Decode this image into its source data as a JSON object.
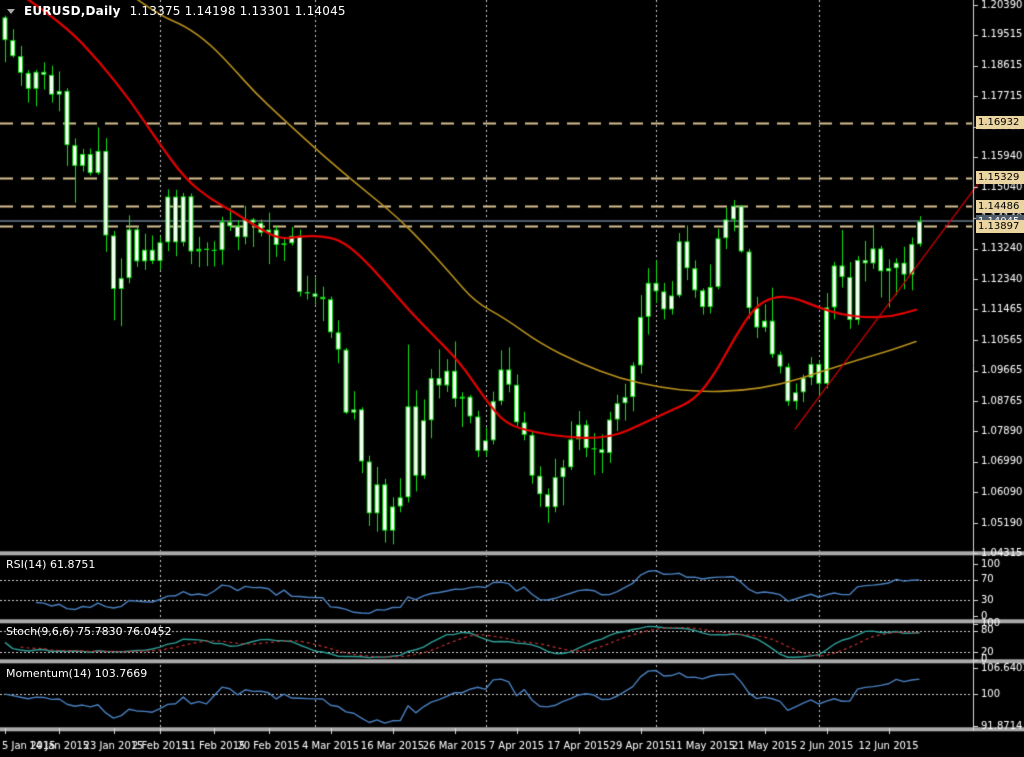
{
  "header": {
    "symbol_period": "EURUSD,Daily",
    "ohlc": "1.13375 1.14198 1.13301 1.14045"
  },
  "chart_data": {
    "type": "candlestick",
    "symbol": "EURUSD",
    "timeframe": "Daily",
    "current_bar": {
      "open": 1.13375,
      "high": 1.14198,
      "low": 1.13301,
      "close": 1.14045
    },
    "price_axis": {
      "ylim": [
        1.04315,
        1.2039
      ],
      "tick_labels": [
        "1.20390",
        "1.19515",
        "1.18615",
        "1.17715",
        "1.16815",
        "1.15940",
        "1.15040",
        "1.14140",
        "1.13240",
        "1.12340",
        "1.11465",
        "1.10565",
        "1.09665",
        "1.08765",
        "1.07890",
        "1.06990",
        "1.06090",
        "1.05190",
        "1.04315"
      ],
      "tick_values": [
        1.2039,
        1.19515,
        1.18615,
        1.17715,
        1.16815,
        1.1594,
        1.1504,
        1.1414,
        1.1324,
        1.1234,
        1.11465,
        1.10565,
        1.09665,
        1.08765,
        1.0789,
        1.0699,
        1.0609,
        1.0519,
        1.04315
      ]
    },
    "levels": [
      {
        "value": 1.16932,
        "label": "1.16932"
      },
      {
        "value": 1.15329,
        "label": "1.15329"
      },
      {
        "value": 1.14486,
        "label": "1.14486"
      },
      {
        "value": 1.13897,
        "label": "1.13897"
      }
    ],
    "current_price": {
      "value": 1.14045,
      "label": "1.14045"
    },
    "x_axis": {
      "labels": [
        "5 Jan 2015",
        "14 Jan 2015",
        "23 Jan 2015",
        "2 Feb 2015",
        "11 Feb 2015",
        "20 Feb 2015",
        "4 Mar 2015",
        "16 Mar 2015",
        "26 Mar 2015",
        "7 Apr 2015",
        "17 Apr 2015",
        "29 Apr 2015",
        "11 May 2015",
        "21 May 2015",
        "2 Jun 2015",
        "12 Jun 2015"
      ],
      "indices": [
        0,
        7,
        14,
        20,
        27,
        34,
        42,
        50,
        58,
        66,
        74,
        82,
        90,
        98,
        106,
        114
      ]
    },
    "month_separator_indices": [
      20,
      40,
      62,
      84,
      105
    ],
    "candles": [
      [
        1.2003,
        1.2008,
        1.1871,
        1.1936
      ],
      [
        1.1936,
        1.1968,
        1.1885,
        1.1889
      ],
      [
        1.1889,
        1.1919,
        1.1802,
        1.184
      ],
      [
        1.184,
        1.1848,
        1.1753,
        1.1793
      ],
      [
        1.1793,
        1.1849,
        1.1742,
        1.1843
      ],
      [
        1.1843,
        1.1871,
        1.1791,
        1.1834
      ],
      [
        1.1834,
        1.1861,
        1.1753,
        1.1776
      ],
      [
        1.1776,
        1.1844,
        1.1727,
        1.1787
      ],
      [
        1.1787,
        1.1795,
        1.1567,
        1.1628
      ],
      [
        1.1628,
        1.1648,
        1.1459,
        1.1567
      ],
      [
        1.1567,
        1.1617,
        1.155,
        1.1602
      ],
      [
        1.1602,
        1.1618,
        1.1539,
        1.1546
      ],
      [
        1.1546,
        1.168,
        1.1541,
        1.1611
      ],
      [
        1.1611,
        1.1649,
        1.1315,
        1.1363
      ],
      [
        1.1363,
        1.1376,
        1.1114,
        1.1206
      ],
      [
        1.1206,
        1.1296,
        1.1097,
        1.1238
      ],
      [
        1.1238,
        1.1422,
        1.1223,
        1.1381
      ],
      [
        1.1381,
        1.139,
        1.1271,
        1.1287
      ],
      [
        1.1287,
        1.1368,
        1.1262,
        1.1321
      ],
      [
        1.1321,
        1.1363,
        1.1279,
        1.1288
      ],
      [
        1.1288,
        1.136,
        1.1262,
        1.1343
      ],
      [
        1.1343,
        1.1498,
        1.1317,
        1.1477
      ],
      [
        1.1477,
        1.1497,
        1.1302,
        1.1343
      ],
      [
        1.1343,
        1.1488,
        1.1331,
        1.1478
      ],
      [
        1.1478,
        1.1486,
        1.1279,
        1.1316
      ],
      [
        1.1316,
        1.1359,
        1.127,
        1.1324
      ],
      [
        1.1324,
        1.1343,
        1.1273,
        1.1321
      ],
      [
        1.1321,
        1.1346,
        1.1272,
        1.132
      ],
      [
        1.132,
        1.1418,
        1.1277,
        1.1403
      ],
      [
        1.1403,
        1.1443,
        1.1376,
        1.139
      ],
      [
        1.139,
        1.1407,
        1.132,
        1.1358
      ],
      [
        1.1358,
        1.145,
        1.1337,
        1.141
      ],
      [
        1.141,
        1.1414,
        1.1329,
        1.14
      ],
      [
        1.14,
        1.141,
        1.136,
        1.1371
      ],
      [
        1.1371,
        1.143,
        1.1279,
        1.138
      ],
      [
        1.138,
        1.1392,
        1.13,
        1.1335
      ],
      [
        1.1335,
        1.1358,
        1.1288,
        1.134
      ],
      [
        1.134,
        1.1388,
        1.1333,
        1.1362
      ],
      [
        1.1362,
        1.138,
        1.1184,
        1.1197
      ],
      [
        1.1197,
        1.1245,
        1.1175,
        1.1193
      ],
      [
        1.1193,
        1.124,
        1.116,
        1.1183
      ],
      [
        1.1183,
        1.1213,
        1.1112,
        1.1176
      ],
      [
        1.1176,
        1.1184,
        1.1062,
        1.1079
      ],
      [
        1.1079,
        1.1114,
        1.0988,
        1.1028
      ],
      [
        1.1028,
        1.1033,
        1.0839,
        1.0843
      ],
      [
        1.0843,
        1.0906,
        1.0823,
        1.0853
      ],
      [
        1.0853,
        1.0859,
        1.0666,
        1.07
      ],
      [
        1.07,
        1.0717,
        1.0511,
        1.0548
      ],
      [
        1.0548,
        1.0684,
        1.0494,
        1.0633
      ],
      [
        1.0633,
        1.0649,
        1.0462,
        1.0497
      ],
      [
        1.0497,
        1.0595,
        1.0457,
        1.0568
      ],
      [
        1.0568,
        1.0651,
        1.0551,
        1.0595
      ],
      [
        1.0595,
        1.1043,
        1.058,
        1.0862
      ],
      [
        1.0862,
        1.0909,
        1.0612,
        1.0658
      ],
      [
        1.0658,
        1.0882,
        1.0649,
        1.0821
      ],
      [
        1.0821,
        1.0971,
        1.0768,
        1.0945
      ],
      [
        1.0945,
        1.1029,
        1.0885,
        1.0923
      ],
      [
        1.0923,
        1.1,
        1.0904,
        1.0966
      ],
      [
        1.0966,
        1.1052,
        1.086,
        1.0884
      ],
      [
        1.0884,
        1.0903,
        1.0801,
        1.089
      ],
      [
        1.089,
        1.0895,
        1.0812,
        1.0832
      ],
      [
        1.0832,
        1.0849,
        1.0713,
        1.0731
      ],
      [
        1.0731,
        1.08,
        1.0715,
        1.0762
      ],
      [
        1.0762,
        1.0905,
        1.075,
        1.0877
      ],
      [
        1.0877,
        1.1026,
        1.0865,
        1.097
      ],
      [
        1.097,
        1.1035,
        1.0903,
        1.0925
      ],
      [
        1.0925,
        1.0955,
        1.0804,
        1.0815
      ],
      [
        1.0815,
        1.0846,
        1.0762,
        1.0778
      ],
      [
        1.0778,
        1.0789,
        1.0635,
        1.0658
      ],
      [
        1.0658,
        1.0686,
        1.0567,
        1.0604
      ],
      [
        1.0604,
        1.0621,
        1.052,
        1.0566
      ],
      [
        1.0566,
        1.0708,
        1.0551,
        1.0654
      ],
      [
        1.0654,
        1.0705,
        1.0571,
        1.0683
      ],
      [
        1.0683,
        1.0818,
        1.0675,
        1.0765
      ],
      [
        1.0765,
        1.0848,
        1.0733,
        1.0808
      ],
      [
        1.0808,
        1.0821,
        1.0713,
        1.0739
      ],
      [
        1.0739,
        1.0783,
        1.066,
        1.0736
      ],
      [
        1.0736,
        1.0779,
        1.0666,
        1.0725
      ],
      [
        1.0725,
        1.0846,
        1.0696,
        1.0823
      ],
      [
        1.0823,
        1.0896,
        1.0789,
        1.0871
      ],
      [
        1.0871,
        1.0928,
        1.082,
        1.0889
      ],
      [
        1.0889,
        1.0991,
        1.0847,
        1.0982
      ],
      [
        1.0982,
        1.1188,
        1.0958,
        1.1124
      ],
      [
        1.1124,
        1.1267,
        1.1072,
        1.1224
      ],
      [
        1.1224,
        1.129,
        1.1165,
        1.1199
      ],
      [
        1.1199,
        1.1224,
        1.1117,
        1.1146
      ],
      [
        1.1146,
        1.1229,
        1.1131,
        1.1187
      ],
      [
        1.1187,
        1.137,
        1.1181,
        1.1346
      ],
      [
        1.1346,
        1.1392,
        1.1232,
        1.1267
      ],
      [
        1.1267,
        1.129,
        1.118,
        1.1202
      ],
      [
        1.1202,
        1.1208,
        1.1131,
        1.1153
      ],
      [
        1.1153,
        1.1278,
        1.1134,
        1.1212
      ],
      [
        1.1212,
        1.1383,
        1.1205,
        1.1355
      ],
      [
        1.1355,
        1.1445,
        1.1323,
        1.141
      ],
      [
        1.141,
        1.1467,
        1.1375,
        1.145
      ],
      [
        1.145,
        1.1452,
        1.1312,
        1.1316
      ],
      [
        1.1316,
        1.1324,
        1.1119,
        1.115
      ],
      [
        1.115,
        1.1183,
        1.1062,
        1.1093
      ],
      [
        1.1093,
        1.1161,
        1.108,
        1.1113
      ],
      [
        1.1113,
        1.121,
        1.1004,
        1.1014
      ],
      [
        1.1014,
        1.1023,
        1.0958,
        1.0978
      ],
      [
        1.0978,
        1.0988,
        1.0863,
        1.0876
      ],
      [
        1.0876,
        1.0929,
        1.0852,
        1.0903
      ],
      [
        1.0903,
        1.0955,
        1.0874,
        1.0946
      ],
      [
        1.0946,
        1.1006,
        1.0924,
        1.0986
      ],
      [
        1.0986,
        1.0996,
        1.0888,
        1.0928
      ],
      [
        1.0928,
        1.1194,
        1.0914,
        1.1152
      ],
      [
        1.1152,
        1.1285,
        1.1117,
        1.1275
      ],
      [
        1.1275,
        1.1379,
        1.121,
        1.1241
      ],
      [
        1.1241,
        1.1285,
        1.1089,
        1.1115
      ],
      [
        1.1115,
        1.1303,
        1.1101,
        1.1291
      ],
      [
        1.1291,
        1.1347,
        1.1228,
        1.1281
      ],
      [
        1.1281,
        1.1386,
        1.1265,
        1.1325
      ],
      [
        1.1325,
        1.1332,
        1.1181,
        1.1258
      ],
      [
        1.1258,
        1.1293,
        1.1152,
        1.1267
      ],
      [
        1.1267,
        1.1296,
        1.1188,
        1.1283
      ],
      [
        1.1283,
        1.133,
        1.1205,
        1.1248
      ],
      [
        1.1248,
        1.1357,
        1.1202,
        1.1338
      ],
      [
        1.13375,
        1.14198,
        1.13301,
        1.14045
      ]
    ],
    "overlays": {
      "ma_fast": {
        "name": "red moving average",
        "color": "#E60000",
        "points": [
          [
            28,
            1.2055
          ],
          [
            65,
            1.198
          ],
          [
            100,
            1.187
          ],
          [
            130,
            1.176
          ],
          [
            160,
            1.163
          ],
          [
            185,
            1.153
          ],
          [
            210,
            1.147
          ],
          [
            235,
            1.143
          ],
          [
            258,
            1.1385
          ],
          [
            280,
            1.1352
          ],
          [
            300,
            1.136
          ],
          [
            320,
            1.1362
          ],
          [
            340,
            1.135
          ],
          [
            360,
            1.1305
          ],
          [
            385,
            1.1225
          ],
          [
            410,
            1.114
          ],
          [
            435,
            1.1065
          ],
          [
            460,
            1.099
          ],
          [
            485,
            1.0885
          ],
          [
            505,
            1.081
          ],
          [
            535,
            1.0785
          ],
          [
            565,
            1.0772
          ],
          [
            595,
            1.0768
          ],
          [
            620,
            1.078
          ],
          [
            645,
            1.0815
          ],
          [
            670,
            1.0848
          ],
          [
            695,
            1.0882
          ],
          [
            715,
            1.0958
          ],
          [
            735,
            1.1065
          ],
          [
            755,
            1.1155
          ],
          [
            775,
            1.1185
          ],
          [
            795,
            1.118
          ],
          [
            818,
            1.1152
          ],
          [
            842,
            1.113
          ],
          [
            868,
            1.1122
          ],
          [
            893,
            1.1126
          ],
          [
            916,
            1.1145
          ]
        ]
      },
      "ma_slow": {
        "name": "gold moving average",
        "color": "#B8911C",
        "points": [
          [
            135,
            1.206
          ],
          [
            160,
            1.2008
          ],
          [
            185,
            1.1978
          ],
          [
            210,
            1.1925
          ],
          [
            235,
            1.1848
          ],
          [
            255,
            1.1782
          ],
          [
            280,
            1.1713
          ],
          [
            310,
            1.1632
          ],
          [
            340,
            1.1555
          ],
          [
            370,
            1.1483
          ],
          [
            400,
            1.141
          ],
          [
            427,
            1.1328
          ],
          [
            450,
            1.1253
          ],
          [
            475,
            1.1168
          ],
          [
            505,
            1.112
          ],
          [
            540,
            1.1046
          ],
          [
            580,
            1.0988
          ],
          [
            620,
            1.0943
          ],
          [
            660,
            1.0917
          ],
          [
            700,
            1.0904
          ],
          [
            740,
            1.0907
          ],
          [
            780,
            1.0925
          ],
          [
            820,
            1.0962
          ],
          [
            858,
            1.0998
          ],
          [
            890,
            1.1025
          ],
          [
            916,
            1.1052
          ]
        ]
      },
      "trendline": {
        "name": "ascending trendline",
        "color": "#CC0000",
        "from": [
          795,
          1.0795
        ],
        "to": [
          982,
          1.153
        ]
      }
    },
    "indicators": {
      "rsi": {
        "label": "RSI(14) 61.8751",
        "period": 14,
        "value": 61.8751,
        "levels": [
          70,
          30
        ],
        "scale_values": [
          100,
          70,
          30,
          0
        ],
        "scale_labels": [
          "100",
          "70",
          "30",
          "0"
        ],
        "color": "#4A80C0"
      },
      "stoch": {
        "label": "Stoch(9,6,6) 75.7830 76.0452",
        "k_value": 75.783,
        "d_value": 76.0452,
        "levels": [
          80,
          20
        ],
        "scale_values": [
          100,
          80,
          20,
          0
        ],
        "scale_labels": [
          "100",
          "80",
          "20",
          "0"
        ],
        "k_color": "#2E9E96",
        "d_color": "#C03030"
      },
      "momentum": {
        "label": "Momentum(14) 103.7669",
        "period": 14,
        "value": 103.7669,
        "level": 100,
        "scale_max": 106.6401,
        "scale_min": 91.8714,
        "scale_labels": [
          "106.6401",
          "100",
          "91.8714"
        ],
        "color": "#4A80C0"
      }
    },
    "colors": {
      "background": "#000000",
      "candle_outline": "#12E112",
      "candle_body": "#FFFFFF",
      "level_line": "#D8C192",
      "flag_bg": "#EAD5A2",
      "price_line": "#4E5A68",
      "separator": "#ABABAB",
      "grid_dot": "#C8C8C8",
      "axis_line": "#D8D8D8",
      "text": "#FFFFFF"
    }
  }
}
